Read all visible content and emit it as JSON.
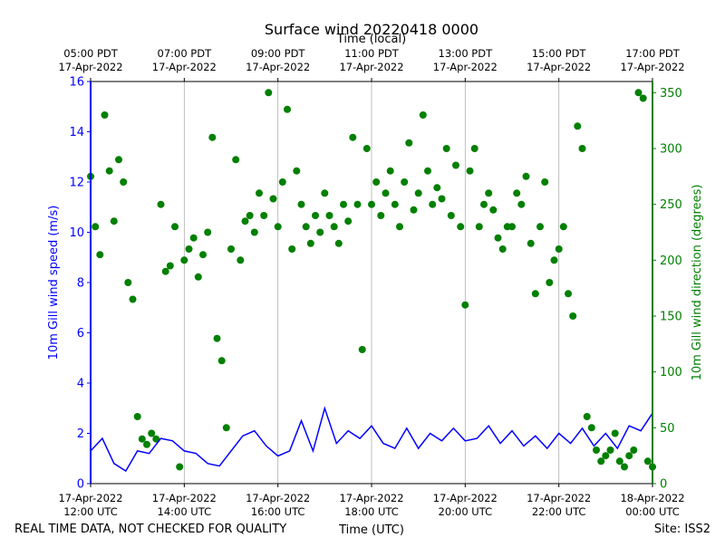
{
  "chart_data": {
    "type": "line+scatter",
    "title": "Surface wind 20220418 0000",
    "top_axis_label": "Time (local)",
    "xlabel": "Time (UTC)",
    "ylabel_left": "10m Gill wind speed (m/s)",
    "ylabel_right": "10m Gill wind direction (degrees)",
    "footer_left": "REAL TIME DATA, NOT CHECKED FOR QUALITY",
    "footer_right": "Site: ISS2",
    "x_range_utc": [
      "2022-04-17 12:00",
      "2022-04-18 00:00"
    ],
    "ylim_left": [
      0,
      16
    ],
    "ylim_right": [
      0,
      360
    ],
    "yticks_left": [
      0,
      2,
      4,
      6,
      8,
      10,
      12,
      14,
      16
    ],
    "yticks_right": [
      0,
      50,
      100,
      150,
      200,
      250,
      300,
      350
    ],
    "grid": "vertical",
    "colors": {
      "speed": "#0000ff",
      "direction": "#008000",
      "grid": "#b0b0b0"
    },
    "bottom_ticks": [
      {
        "hour": 12,
        "date": "17-Apr-2022",
        "time": "12:00 UTC"
      },
      {
        "hour": 14,
        "date": "17-Apr-2022",
        "time": "14:00 UTC"
      },
      {
        "hour": 16,
        "date": "17-Apr-2022",
        "time": "16:00 UTC"
      },
      {
        "hour": 18,
        "date": "17-Apr-2022",
        "time": "18:00 UTC"
      },
      {
        "hour": 20,
        "date": "17-Apr-2022",
        "time": "20:00 UTC"
      },
      {
        "hour": 22,
        "date": "17-Apr-2022",
        "time": "22:00 UTC"
      },
      {
        "hour": 24,
        "date": "18-Apr-2022",
        "time": "00:00 UTC"
      }
    ],
    "top_ticks": [
      {
        "hour": 12,
        "time": "05:00 PDT",
        "date": "17-Apr-2022"
      },
      {
        "hour": 14,
        "time": "07:00 PDT",
        "date": "17-Apr-2022"
      },
      {
        "hour": 16,
        "time": "09:00 PDT",
        "date": "17-Apr-2022"
      },
      {
        "hour": 18,
        "time": "11:00 PDT",
        "date": "17-Apr-2022"
      },
      {
        "hour": 20,
        "time": "13:00 PDT",
        "date": "17-Apr-2022"
      },
      {
        "hour": 22,
        "time": "15:00 PDT",
        "date": "17-Apr-2022"
      },
      {
        "hour": 24,
        "time": "17:00 PDT",
        "date": "17-Apr-2022"
      }
    ],
    "speed_series": {
      "name": "10m Gill wind speed",
      "hours": [
        12.0,
        12.25,
        12.5,
        12.75,
        13.0,
        13.25,
        13.5,
        13.75,
        14.0,
        14.25,
        14.5,
        14.75,
        15.0,
        15.25,
        15.5,
        15.75,
        16.0,
        16.25,
        16.5,
        16.75,
        17.0,
        17.25,
        17.5,
        17.75,
        18.0,
        18.25,
        18.5,
        18.75,
        19.0,
        19.25,
        19.5,
        19.75,
        20.0,
        20.25,
        20.5,
        20.75,
        21.0,
        21.25,
        21.5,
        21.75,
        22.0,
        22.25,
        22.5,
        22.75,
        23.0,
        23.25,
        23.5,
        23.75,
        24.0
      ],
      "values": [
        1.3,
        1.8,
        0.8,
        0.5,
        1.3,
        1.2,
        1.8,
        1.7,
        1.3,
        1.2,
        0.8,
        0.7,
        1.3,
        1.9,
        2.1,
        1.5,
        1.1,
        1.3,
        2.5,
        1.3,
        3.0,
        1.6,
        2.1,
        1.8,
        2.3,
        1.6,
        1.4,
        2.2,
        1.4,
        2.0,
        1.7,
        2.2,
        1.7,
        1.8,
        2.3,
        1.6,
        2.1,
        1.5,
        1.9,
        1.4,
        2.0,
        1.6,
        2.2,
        1.5,
        2.0,
        1.4,
        2.3,
        2.1,
        2.8
      ]
    },
    "direction_series": {
      "name": "10m Gill wind direction",
      "hours": [
        12.0,
        12.1,
        12.2,
        12.3,
        12.4,
        12.5,
        12.6,
        12.7,
        12.8,
        12.9,
        13.0,
        13.1,
        13.2,
        13.3,
        13.4,
        13.5,
        13.6,
        13.7,
        13.8,
        13.9,
        14.0,
        14.1,
        14.2,
        14.3,
        14.4,
        14.5,
        14.6,
        14.7,
        14.8,
        14.9,
        15.0,
        15.1,
        15.2,
        15.3,
        15.4,
        15.5,
        15.6,
        15.7,
        15.8,
        15.9,
        16.0,
        16.1,
        16.2,
        16.3,
        16.4,
        16.5,
        16.6,
        16.7,
        16.8,
        16.9,
        17.0,
        17.1,
        17.2,
        17.3,
        17.4,
        17.5,
        17.6,
        17.7,
        17.8,
        17.9,
        18.0,
        18.1,
        18.2,
        18.3,
        18.4,
        18.5,
        18.6,
        18.7,
        18.8,
        18.9,
        19.0,
        19.1,
        19.2,
        19.3,
        19.4,
        19.5,
        19.6,
        19.7,
        19.8,
        19.9,
        20.0,
        20.1,
        20.2,
        20.3,
        20.4,
        20.5,
        20.6,
        20.7,
        20.8,
        20.9,
        21.0,
        21.1,
        21.2,
        21.3,
        21.4,
        21.5,
        21.6,
        21.7,
        21.8,
        21.9,
        22.0,
        22.1,
        22.2,
        22.3,
        22.4,
        22.5,
        22.6,
        22.7,
        22.8,
        22.9,
        23.0,
        23.1,
        23.2,
        23.3,
        23.4,
        23.5,
        23.6,
        23.7,
        23.8,
        23.9,
        24.0
      ],
      "values": [
        275,
        230,
        205,
        330,
        280,
        235,
        290,
        270,
        180,
        165,
        60,
        40,
        35,
        45,
        40,
        250,
        190,
        195,
        230,
        15,
        200,
        210,
        220,
        185,
        205,
        225,
        310,
        130,
        110,
        50,
        210,
        290,
        200,
        235,
        240,
        225,
        260,
        240,
        350,
        255,
        230,
        270,
        335,
        210,
        280,
        250,
        230,
        215,
        240,
        225,
        260,
        240,
        230,
        215,
        250,
        235,
        310,
        250,
        120,
        300,
        250,
        270,
        240,
        260,
        280,
        250,
        230,
        270,
        305,
        245,
        260,
        330,
        280,
        250,
        265,
        255,
        300,
        240,
        285,
        230,
        160,
        280,
        300,
        230,
        250,
        260,
        245,
        220,
        210,
        230,
        230,
        260,
        250,
        275,
        215,
        170,
        230,
        270,
        180,
        200,
        210,
        230,
        170,
        150,
        320,
        300,
        60,
        50,
        30,
        20,
        25,
        30,
        45,
        20,
        15,
        25,
        30,
        350,
        345,
        20,
        15
      ]
    }
  }
}
